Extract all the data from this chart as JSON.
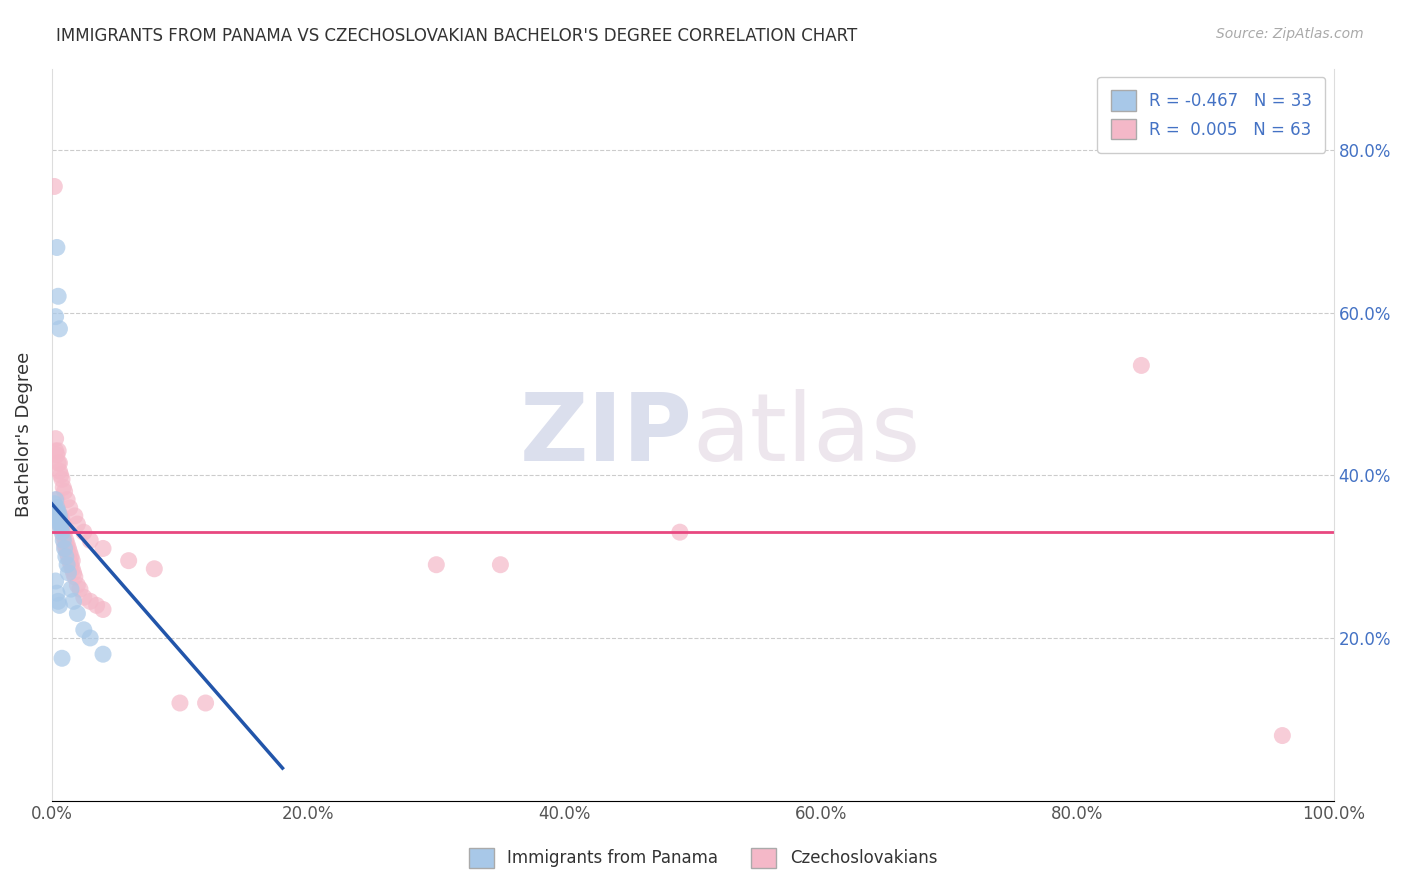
{
  "title": "IMMIGRANTS FROM PANAMA VS CZECHOSLOVAKIAN BACHELOR'S DEGREE CORRELATION CHART",
  "source_text": "Source: ZipAtlas.com",
  "ylabel": "Bachelor's Degree",
  "xlim": [
    0.0,
    1.0
  ],
  "ylim": [
    0.0,
    0.9
  ],
  "xtick_vals": [
    0.0,
    0.2,
    0.4,
    0.6,
    0.8,
    1.0
  ],
  "ytick_vals": [
    0.2,
    0.4,
    0.6,
    0.8
  ],
  "legend1_label": "R = -0.467   N = 33",
  "legend2_label": "R =  0.005   N = 63",
  "legend_series1": "Immigrants from Panama",
  "legend_series2": "Czechoslovakians",
  "blue_color": "#a8c8e8",
  "pink_color": "#f4b8c8",
  "blue_line_color": "#2255aa",
  "pink_line_color": "#e84880",
  "blue_line_x": [
    0.0,
    0.18
  ],
  "blue_line_y": [
    0.365,
    0.04
  ],
  "pink_line_y": 0.33,
  "blue_dots": [
    [
      0.002,
      0.365
    ],
    [
      0.003,
      0.37
    ],
    [
      0.004,
      0.355
    ],
    [
      0.004,
      0.36
    ],
    [
      0.005,
      0.345
    ],
    [
      0.005,
      0.35
    ],
    [
      0.005,
      0.355
    ],
    [
      0.006,
      0.34
    ],
    [
      0.006,
      0.345
    ],
    [
      0.006,
      0.35
    ],
    [
      0.007,
      0.335
    ],
    [
      0.007,
      0.34
    ],
    [
      0.008,
      0.33
    ],
    [
      0.009,
      0.32
    ],
    [
      0.01,
      0.31
    ],
    [
      0.011,
      0.3
    ],
    [
      0.012,
      0.29
    ],
    [
      0.013,
      0.28
    ],
    [
      0.015,
      0.26
    ],
    [
      0.017,
      0.245
    ],
    [
      0.02,
      0.23
    ],
    [
      0.025,
      0.21
    ],
    [
      0.03,
      0.2
    ],
    [
      0.04,
      0.18
    ],
    [
      0.003,
      0.27
    ],
    [
      0.004,
      0.255
    ],
    [
      0.005,
      0.245
    ],
    [
      0.006,
      0.24
    ],
    [
      0.005,
      0.62
    ],
    [
      0.006,
      0.58
    ],
    [
      0.004,
      0.68
    ],
    [
      0.003,
      0.595
    ],
    [
      0.008,
      0.175
    ]
  ],
  "pink_dots": [
    [
      0.002,
      0.755
    ],
    [
      0.003,
      0.355
    ],
    [
      0.004,
      0.36
    ],
    [
      0.004,
      0.37
    ],
    [
      0.005,
      0.345
    ],
    [
      0.005,
      0.355
    ],
    [
      0.006,
      0.34
    ],
    [
      0.006,
      0.35
    ],
    [
      0.007,
      0.34
    ],
    [
      0.007,
      0.35
    ],
    [
      0.008,
      0.335
    ],
    [
      0.008,
      0.345
    ],
    [
      0.009,
      0.325
    ],
    [
      0.009,
      0.34
    ],
    [
      0.01,
      0.315
    ],
    [
      0.01,
      0.33
    ],
    [
      0.011,
      0.31
    ],
    [
      0.011,
      0.32
    ],
    [
      0.012,
      0.305
    ],
    [
      0.012,
      0.315
    ],
    [
      0.013,
      0.3
    ],
    [
      0.013,
      0.31
    ],
    [
      0.014,
      0.295
    ],
    [
      0.014,
      0.305
    ],
    [
      0.015,
      0.29
    ],
    [
      0.015,
      0.3
    ],
    [
      0.016,
      0.285
    ],
    [
      0.016,
      0.295
    ],
    [
      0.017,
      0.28
    ],
    [
      0.018,
      0.275
    ],
    [
      0.02,
      0.265
    ],
    [
      0.022,
      0.26
    ],
    [
      0.025,
      0.25
    ],
    [
      0.03,
      0.245
    ],
    [
      0.035,
      0.24
    ],
    [
      0.04,
      0.235
    ],
    [
      0.003,
      0.43
    ],
    [
      0.003,
      0.445
    ],
    [
      0.004,
      0.425
    ],
    [
      0.005,
      0.415
    ],
    [
      0.005,
      0.43
    ],
    [
      0.006,
      0.415
    ],
    [
      0.006,
      0.405
    ],
    [
      0.007,
      0.4
    ],
    [
      0.008,
      0.395
    ],
    [
      0.009,
      0.385
    ],
    [
      0.01,
      0.38
    ],
    [
      0.012,
      0.37
    ],
    [
      0.014,
      0.36
    ],
    [
      0.018,
      0.35
    ],
    [
      0.02,
      0.34
    ],
    [
      0.025,
      0.33
    ],
    [
      0.03,
      0.32
    ],
    [
      0.04,
      0.31
    ],
    [
      0.06,
      0.295
    ],
    [
      0.08,
      0.285
    ],
    [
      0.1,
      0.12
    ],
    [
      0.12,
      0.12
    ],
    [
      0.3,
      0.29
    ],
    [
      0.35,
      0.29
    ],
    [
      0.49,
      0.33
    ],
    [
      0.85,
      0.535
    ],
    [
      0.96,
      0.08
    ]
  ]
}
